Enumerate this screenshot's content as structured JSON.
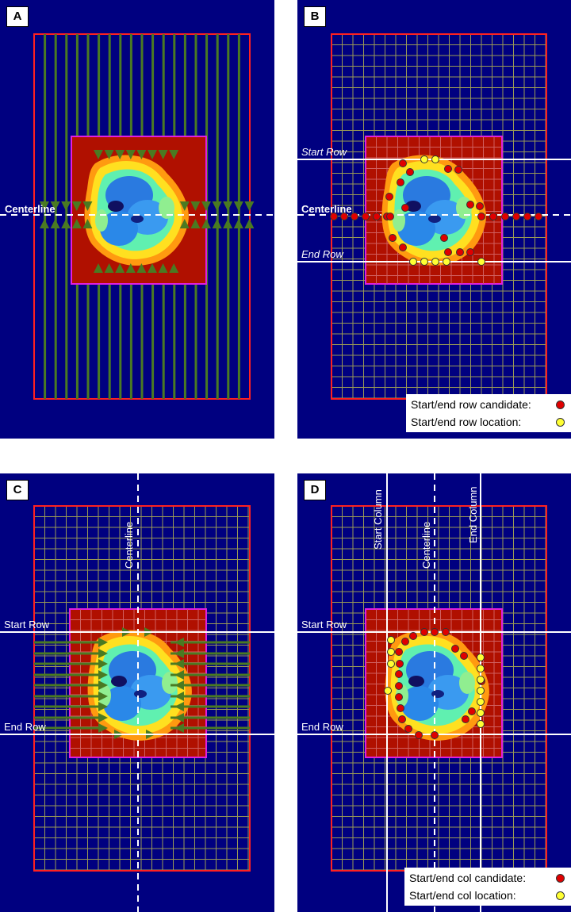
{
  "panels": [
    {
      "id": "A",
      "label": "A",
      "texts": {
        "centerline": "Centerline"
      }
    },
    {
      "id": "B",
      "label": "B",
      "texts": {
        "start_row": "Start Row",
        "centerline": "Centerline",
        "end_row": "End Row"
      },
      "legend": {
        "candidate": "Start/end row candidate:",
        "location": "Start/end row location:"
      }
    },
    {
      "id": "C",
      "label": "C",
      "texts": {
        "centerline": "Centerline",
        "start_row": "Start Row",
        "end_row": "End Row"
      }
    },
    {
      "id": "D",
      "label": "D",
      "texts": {
        "start_column": "Start Column",
        "centerline": "Centerline",
        "end_column": "End Column",
        "start_row": "Start Row",
        "end_row": "End Row"
      },
      "legend": {
        "candidate": "Start/end col candidate:",
        "location": "Start/end col location:"
      }
    }
  ],
  "colors": {
    "background": "#000080",
    "grid": "#9a9a55",
    "outer_box": "#ff2020",
    "inner_fill": "#b01000",
    "inner_border": "#e020e0",
    "scan_lines": "#4a7a22",
    "candidate_dot": "#e00000",
    "location_dot": "#ffff33",
    "guide_lines": "#ffffff"
  }
}
